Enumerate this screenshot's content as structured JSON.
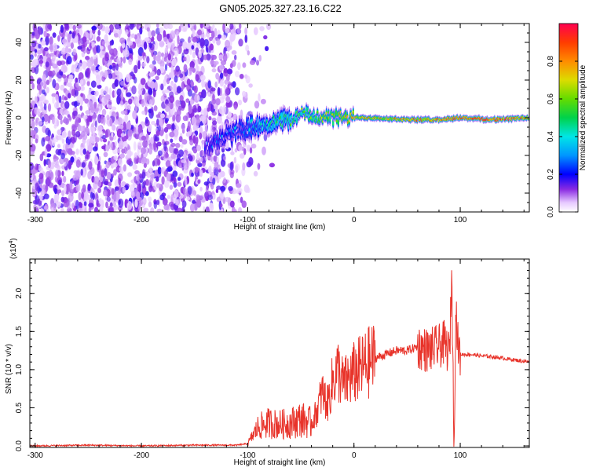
{
  "figure": {
    "title": "GN05.2025.327.23.16.C22"
  },
  "chart_data": [
    {
      "type": "heatmap",
      "xlabel": "Height of straight line (km)",
      "ylabel": "Frequency (Hz)",
      "xlim": [
        -305,
        165
      ],
      "ylim": [
        -50,
        50
      ],
      "xticks": [
        "-300",
        "-200",
        "-100",
        "0",
        "100"
      ],
      "xtick_values": [
        -300,
        -200,
        -100,
        0,
        100
      ],
      "yticks": [
        "-40",
        "-20",
        "0",
        "20",
        "40"
      ],
      "ytick_values": [
        -40,
        -20,
        0,
        20,
        40
      ],
      "colorbar": {
        "label": "Normalized spectral amplitude",
        "range": [
          0,
          1
        ],
        "ticks": [
          "0.0",
          "0.2",
          "0.4",
          "0.6",
          "0.8"
        ],
        "tick_values": [
          0,
          0.2,
          0.4,
          0.6,
          0.8
        ]
      },
      "description_points": {
        "noise_region_x": [
          -305,
          -100
        ],
        "signal_ridge": {
          "x": [
            -140,
            -120,
            -100,
            -80,
            -60,
            -50,
            -40,
            -20,
            0,
            20,
            50,
            80,
            100,
            130,
            165
          ],
          "freq": [
            -15,
            -10,
            -5,
            -3,
            -1,
            2,
            1,
            0,
            0,
            0,
            -1,
            -1,
            0,
            -1,
            0
          ],
          "amplitude": [
            0.15,
            0.2,
            0.25,
            0.35,
            0.45,
            0.5,
            0.55,
            0.6,
            0.7,
            0.7,
            0.75,
            0.8,
            0.85,
            0.9,
            0.75
          ]
        }
      }
    },
    {
      "type": "line",
      "xlabel": "Height of straight line (km)",
      "ylabel": "SNR (10 * v/v)",
      "multiplier": "(x10",
      "multiplier_exp": "4",
      "multiplier_close": ")",
      "xlim": [
        -305,
        165
      ],
      "ylim": [
        -0.02,
        2.45
      ],
      "xticks": [
        "-300",
        "-200",
        "-100",
        "0",
        "100"
      ],
      "xtick_values": [
        -300,
        -200,
        -100,
        0,
        100
      ],
      "yticks": [
        "0.0",
        "0.5",
        "1.0",
        "1.5",
        "2.0"
      ],
      "ytick_values": [
        0,
        0.5,
        1.0,
        1.5,
        2.0
      ],
      "series": [
        {
          "color": "#e8332a",
          "x": [
            -305,
            -250,
            -200,
            -150,
            -110,
            -100,
            -90,
            -80,
            -70,
            -60,
            -50,
            -40,
            -35,
            -30,
            -25,
            -20,
            -15,
            -10,
            0,
            10,
            20,
            30,
            40,
            50,
            60,
            70,
            80,
            85,
            90,
            92,
            94,
            96,
            98,
            100,
            110,
            120,
            130,
            140,
            150,
            165
          ],
          "y": [
            0.0,
            0.01,
            0.0,
            0.01,
            0.01,
            0.03,
            0.25,
            0.3,
            0.28,
            0.3,
            0.35,
            0.3,
            0.45,
            0.7,
            0.55,
            0.85,
            1.0,
            0.8,
            0.95,
            1.05,
            1.15,
            1.2,
            1.25,
            1.25,
            1.3,
            1.25,
            1.3,
            1.35,
            1.2,
            2.3,
            0.05,
            1.8,
            1.3,
            1.2,
            1.2,
            1.18,
            1.17,
            1.15,
            1.13,
            1.1
          ]
        }
      ]
    }
  ]
}
